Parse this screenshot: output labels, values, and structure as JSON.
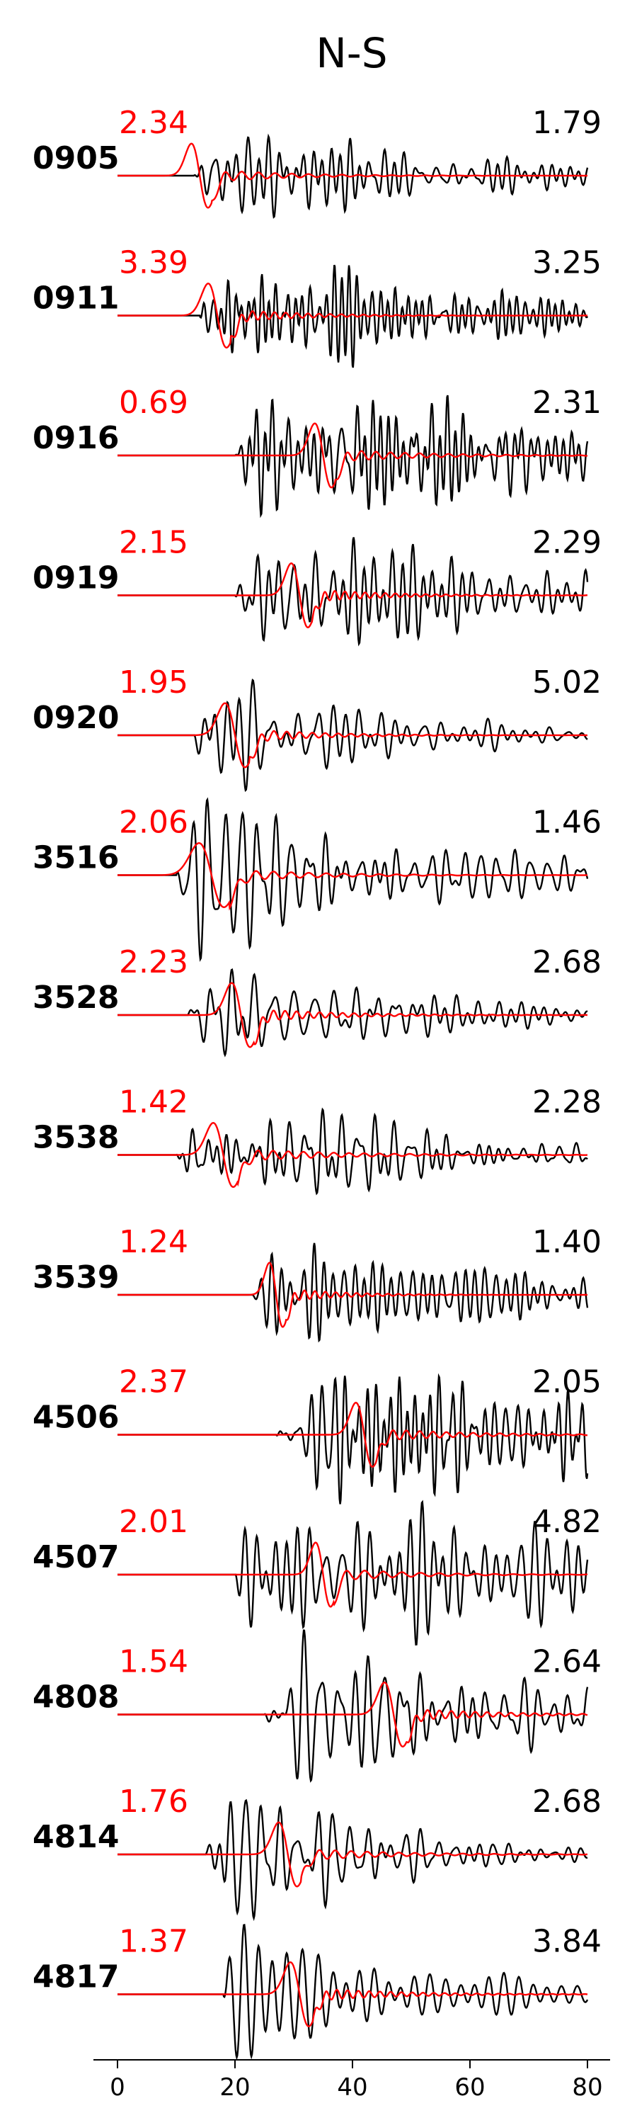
{
  "chart_data": {
    "type": "line",
    "title": "N-S",
    "xlabel": "",
    "ylabel": "",
    "xlim": [
      0,
      80
    ],
    "xticks": [
      0,
      20,
      40,
      60,
      80
    ],
    "xtick_labels": [
      "0",
      "20",
      "40",
      "60",
      "80"
    ],
    "grid": false,
    "colors": {
      "red_trace": "#ff0000",
      "black_trace": "#000000"
    },
    "traces": [
      {
        "station": "0905",
        "red_amp": "2.34",
        "black_amp": "1.79",
        "onset": 13,
        "red_peak": 14,
        "red_width": 2.0,
        "red_decay": 0.08,
        "black_freq": 0.55,
        "black_decay": 0.025
      },
      {
        "station": "0911",
        "red_amp": "3.39",
        "black_amp": "3.25",
        "onset": 14,
        "red_peak": 17,
        "red_width": 2.2,
        "red_decay": 0.08,
        "black_freq": 0.6,
        "black_decay": 0.022
      },
      {
        "station": "0916",
        "red_amp": "0.69",
        "black_amp": "2.31",
        "onset": 20,
        "red_peak": 35,
        "red_width": 2.0,
        "red_decay": 0.07,
        "black_freq": 0.55,
        "black_decay": 0.012
      },
      {
        "station": "0919",
        "red_amp": "2.15",
        "black_amp": "2.29",
        "onset": 20,
        "red_peak": 31,
        "red_width": 2.0,
        "red_decay": 0.08,
        "black_freq": 0.45,
        "black_decay": 0.02
      },
      {
        "station": "0920",
        "red_amp": "1.95",
        "black_amp": "5.02",
        "onset": 13,
        "red_peak": 20,
        "red_width": 2.4,
        "red_decay": 0.08,
        "black_freq": 0.35,
        "black_decay": 0.035
      },
      {
        "station": "3516",
        "red_amp": "2.06",
        "black_amp": "1.46",
        "onset": 10,
        "red_peak": 16,
        "red_width": 3.0,
        "red_decay": 0.07,
        "black_freq": 0.4,
        "black_decay": 0.025
      },
      {
        "station": "3528",
        "red_amp": "2.23",
        "black_amp": "2.68",
        "onset": 12,
        "red_peak": 21,
        "red_width": 2.2,
        "red_decay": 0.07,
        "black_freq": 0.45,
        "black_decay": 0.028
      },
      {
        "station": "3538",
        "red_amp": "1.42",
        "black_amp": "2.28",
        "onset": 10,
        "red_peak": 18,
        "red_width": 2.4,
        "red_decay": 0.06,
        "black_freq": 0.5,
        "black_decay": 0.025
      },
      {
        "station": "3539",
        "red_amp": "1.24",
        "black_amp": "1.40",
        "onset": 23,
        "red_peak": 27,
        "red_width": 1.6,
        "red_decay": 0.1,
        "black_freq": 0.55,
        "black_decay": 0.018
      },
      {
        "station": "4506",
        "red_amp": "2.37",
        "black_amp": "2.05",
        "onset": 27,
        "red_peak": 42,
        "red_width": 2.0,
        "red_decay": 0.07,
        "black_freq": 0.55,
        "black_decay": 0.008
      },
      {
        "station": "4507",
        "red_amp": "2.01",
        "black_amp": "4.82",
        "onset": 20,
        "red_peak": 35,
        "red_width": 1.8,
        "red_decay": 0.08,
        "black_freq": 0.6,
        "black_decay": 0.006
      },
      {
        "station": "4808",
        "red_amp": "1.54",
        "black_amp": "2.64",
        "onset": 25,
        "red_peak": 47,
        "red_width": 2.2,
        "red_decay": 0.07,
        "black_freq": 0.4,
        "black_decay": 0.02
      },
      {
        "station": "4814",
        "red_amp": "1.76",
        "black_amp": "2.68",
        "onset": 15,
        "red_peak": 29,
        "red_width": 2.2,
        "red_decay": 0.07,
        "black_freq": 0.4,
        "black_decay": 0.035
      },
      {
        "station": "4817",
        "red_amp": "1.37",
        "black_amp": "3.84",
        "onset": 18,
        "red_peak": 31,
        "red_width": 2.2,
        "red_decay": 0.07,
        "black_freq": 0.42,
        "black_decay": 0.035
      }
    ]
  }
}
